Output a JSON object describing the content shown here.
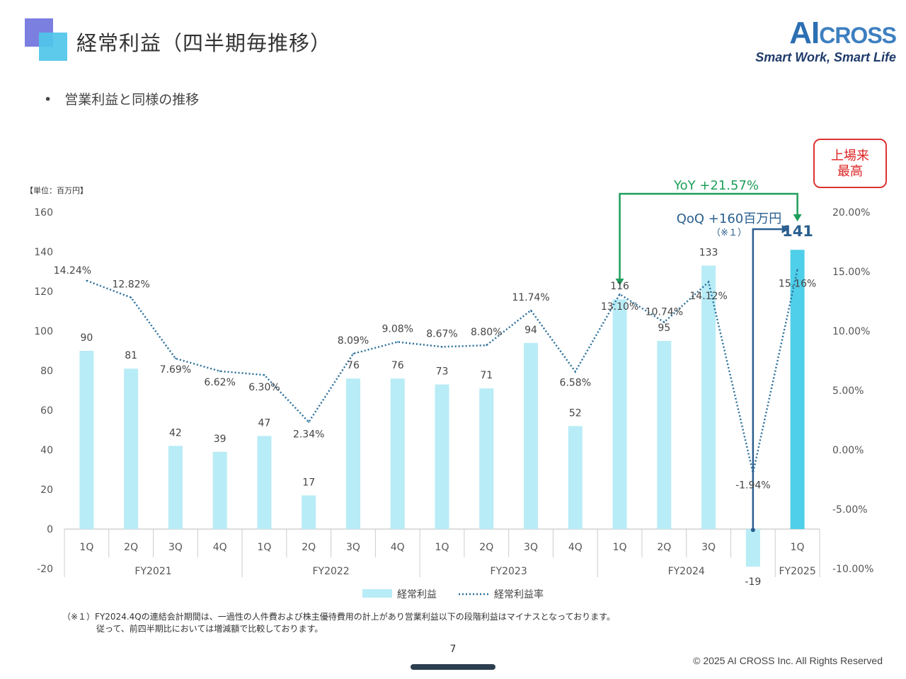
{
  "header": {
    "title": "経常利益（四半期毎推移）",
    "logo_ai": "AI",
    "logo_cross": "CROSS",
    "logo_tagline": "Smart Work, Smart Life"
  },
  "bullet": "営業利益と同様の推移",
  "badge": "上場来\n最高",
  "badge_lines": [
    "上場来",
    "最高"
  ],
  "annotations": {
    "yoy": "YoY +21.57%",
    "qoq": "QoQ +160百万円",
    "qoq_note": "（※１）",
    "highlight_value": "141"
  },
  "footnote": {
    "line1": "（※１）FY2024.4Qの連結会計期間は、一過性の人件費および株主優待費用の計上があり営業利益以下の段階利益はマイナスとなっております。",
    "line2": "従って、前四半期比においては増減額で比較しております。"
  },
  "page_number": "7",
  "copyright": "© 2025 AI CROSS Inc. All Rights Reserved",
  "colors": {
    "bar": "#b8ecf6",
    "bar_highlight": "#4fcfe9",
    "line": "#2b6f9c",
    "yoy": "#1e9e5a",
    "qoq": "#2a5f8f",
    "badge": "#d22222"
  },
  "chart_data": {
    "type": "bar",
    "unit_label": "【単位：百万円】",
    "categories": [
      "1Q",
      "2Q",
      "3Q",
      "4Q",
      "1Q",
      "2Q",
      "3Q",
      "4Q",
      "1Q",
      "2Q",
      "3Q",
      "4Q",
      "1Q",
      "2Q",
      "3Q",
      "4Q",
      "1Q"
    ],
    "groups": [
      {
        "label": "FY2021",
        "count": 4
      },
      {
        "label": "FY2022",
        "count": 4
      },
      {
        "label": "FY2023",
        "count": 4
      },
      {
        "label": "FY2024",
        "count": 4
      },
      {
        "label": "FY2025",
        "count": 1
      }
    ],
    "series": [
      {
        "name": "経常利益",
        "type": "bar",
        "axis": "left",
        "values": [
          90,
          81,
          42,
          39,
          47,
          17,
          76,
          76,
          73,
          71,
          94,
          52,
          116,
          95,
          133,
          -19,
          141
        ],
        "labels": [
          "90",
          "81",
          "42",
          "39",
          "47",
          "17",
          "76",
          "76",
          "73",
          "71",
          "94",
          "52",
          "116",
          "95",
          "133",
          "-19",
          ""
        ]
      },
      {
        "name": "経常利益率",
        "type": "line",
        "axis": "right",
        "values": [
          14.24,
          12.82,
          7.69,
          6.62,
          6.3,
          2.34,
          8.09,
          9.08,
          8.67,
          8.8,
          11.74,
          6.58,
          13.1,
          10.74,
          14.12,
          -1.94,
          15.16
        ],
        "labels": [
          "14.24%",
          "12.82%",
          "7.69%",
          "6.62%",
          "6.30%",
          "2.34%",
          "8.09%",
          "9.08%",
          "8.67%",
          "8.80%",
          "11.74%",
          "6.58%",
          "13.10%",
          "10.74%",
          "14.12%",
          "-1.94%",
          "15.16%"
        ]
      }
    ],
    "y_left": {
      "min": -20,
      "max": 160,
      "ticks": [
        "-20",
        "0",
        "20",
        "40",
        "60",
        "80",
        "100",
        "120",
        "140",
        "160"
      ]
    },
    "y_right": {
      "min": -10,
      "max": 20,
      "ticks": [
        "-10.00%",
        "-5.00%",
        "0.00%",
        "5.00%",
        "10.00%",
        "15.00%",
        "20.00%"
      ]
    },
    "legend_position": "bottom"
  }
}
